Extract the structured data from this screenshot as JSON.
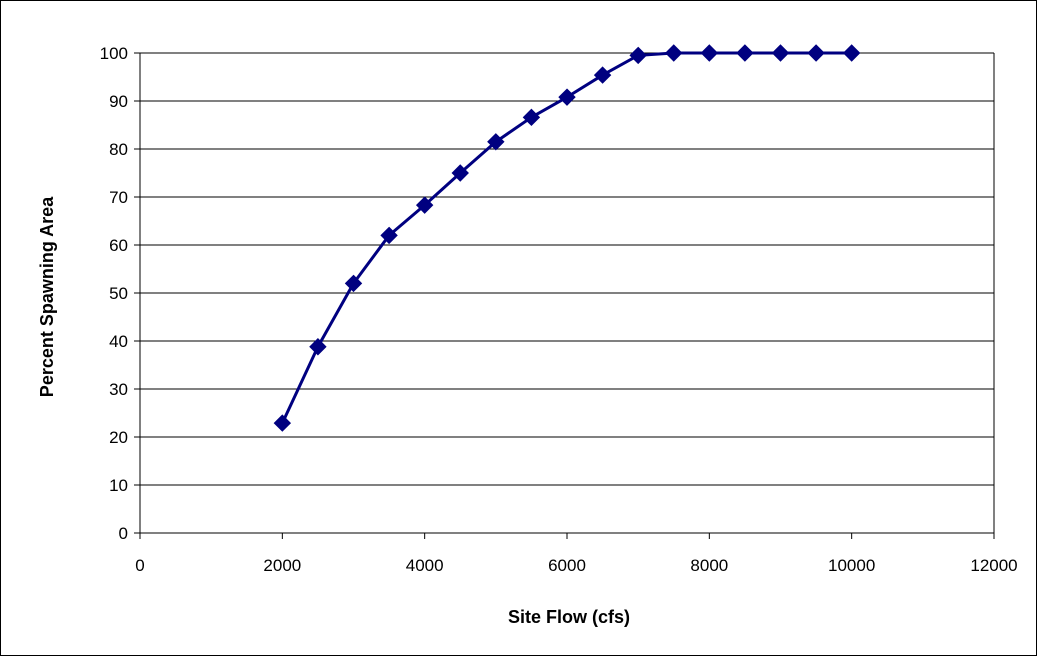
{
  "chart_data": {
    "type": "line",
    "title": "",
    "xlabel": "Site Flow (cfs)",
    "ylabel": "Percent Spawning Area",
    "xlim": [
      0,
      12000
    ],
    "ylim": [
      0,
      100
    ],
    "x_ticks": [
      "0",
      "2000",
      "4000",
      "6000",
      "8000",
      "10000",
      "12000"
    ],
    "y_ticks": [
      "0",
      "10",
      "20",
      "30",
      "40",
      "50",
      "60",
      "70",
      "80",
      "90",
      "100"
    ],
    "grid": "horizontal",
    "legend": "none",
    "marker": "diamond",
    "series": [
      {
        "color": "#000080",
        "x": [
          2000,
          2500,
          3000,
          3500,
          4000,
          4500,
          5000,
          5500,
          6000,
          6500,
          7000,
          7500,
          8000,
          8500,
          9000,
          9500,
          10000
        ],
        "y": [
          22.9,
          38.8,
          52.0,
          62.0,
          68.3,
          75.0,
          81.5,
          86.6,
          90.8,
          95.4,
          99.5,
          100,
          100,
          100,
          100,
          100,
          100
        ]
      }
    ]
  }
}
